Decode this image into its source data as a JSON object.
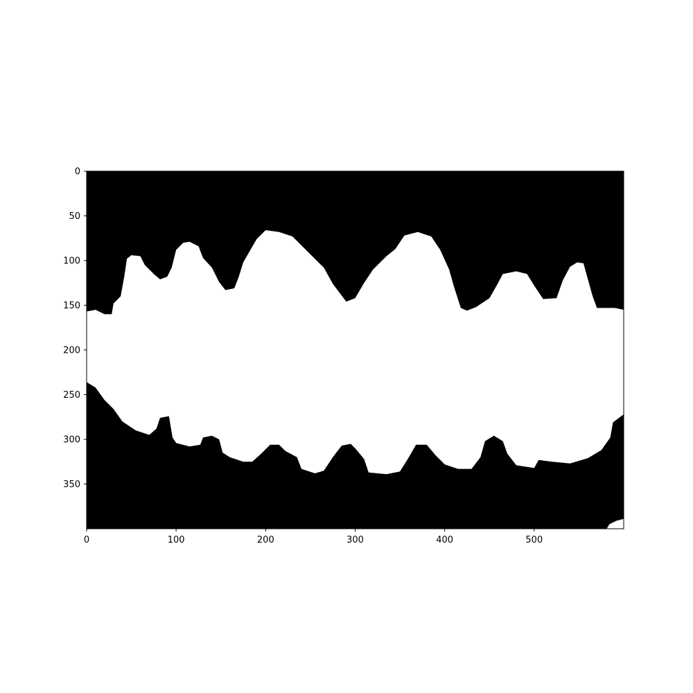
{
  "chart_data": {
    "type": "heatmap",
    "title": "",
    "xlabel": "",
    "ylabel": "",
    "image_size": {
      "width": 600,
      "height": 400
    },
    "xlim": [
      0,
      600
    ],
    "ylim": [
      400,
      0
    ],
    "x_ticks": [
      0,
      100,
      200,
      300,
      400,
      500
    ],
    "y_ticks": [
      0,
      50,
      100,
      150,
      200,
      250,
      300,
      350
    ],
    "x_tick_labels": [
      "0",
      "100",
      "200",
      "300",
      "400",
      "500"
    ],
    "y_tick_labels": [
      "0",
      "50",
      "100",
      "150",
      "200",
      "250",
      "300",
      "350"
    ],
    "colormap": {
      "0": "#000000",
      "1": "#ffffff"
    },
    "mask_description": "binary mask, white band across the middle",
    "mask_upper_boundary": [
      [
        0,
        157
      ],
      [
        10,
        155
      ],
      [
        20,
        160
      ],
      [
        28,
        160
      ],
      [
        30,
        148
      ],
      [
        38,
        140
      ],
      [
        42,
        118
      ],
      [
        45,
        98
      ],
      [
        50,
        94
      ],
      [
        60,
        95
      ],
      [
        65,
        105
      ],
      [
        75,
        115
      ],
      [
        82,
        121
      ],
      [
        90,
        118
      ],
      [
        95,
        108
      ],
      [
        100,
        88
      ],
      [
        108,
        80
      ],
      [
        115,
        79
      ],
      [
        125,
        84
      ],
      [
        130,
        97
      ],
      [
        140,
        108
      ],
      [
        148,
        124
      ],
      [
        155,
        133
      ],
      [
        165,
        131
      ],
      [
        170,
        118
      ],
      [
        175,
        102
      ],
      [
        183,
        88
      ],
      [
        190,
        76
      ],
      [
        200,
        66
      ],
      [
        215,
        68
      ],
      [
        230,
        73
      ],
      [
        240,
        83
      ],
      [
        250,
        93
      ],
      [
        265,
        108
      ],
      [
        275,
        126
      ],
      [
        290,
        146
      ],
      [
        300,
        142
      ],
      [
        310,
        125
      ],
      [
        320,
        110
      ],
      [
        335,
        95
      ],
      [
        345,
        87
      ],
      [
        355,
        72
      ],
      [
        370,
        68
      ],
      [
        385,
        73
      ],
      [
        395,
        88
      ],
      [
        405,
        110
      ],
      [
        410,
        128
      ],
      [
        418,
        153
      ],
      [
        425,
        156
      ],
      [
        435,
        152
      ],
      [
        450,
        142
      ],
      [
        458,
        128
      ],
      [
        465,
        115
      ],
      [
        480,
        112
      ],
      [
        492,
        115
      ],
      [
        500,
        128
      ],
      [
        510,
        143
      ],
      [
        525,
        142
      ],
      [
        532,
        122
      ],
      [
        540,
        107
      ],
      [
        548,
        102
      ],
      [
        555,
        103
      ],
      [
        565,
        139
      ],
      [
        570,
        153
      ],
      [
        590,
        153
      ],
      [
        600,
        155
      ]
    ],
    "mask_lower_boundary": [
      [
        0,
        236
      ],
      [
        10,
        242
      ],
      [
        20,
        256
      ],
      [
        30,
        266
      ],
      [
        40,
        280
      ],
      [
        55,
        290
      ],
      [
        70,
        295
      ],
      [
        78,
        288
      ],
      [
        82,
        276
      ],
      [
        92,
        274
      ],
      [
        96,
        298
      ],
      [
        100,
        304
      ],
      [
        115,
        308
      ],
      [
        127,
        306
      ],
      [
        130,
        298
      ],
      [
        140,
        296
      ],
      [
        148,
        300
      ],
      [
        152,
        315
      ],
      [
        160,
        320
      ],
      [
        175,
        325
      ],
      [
        185,
        325
      ],
      [
        195,
        316
      ],
      [
        205,
        306
      ],
      [
        215,
        306
      ],
      [
        222,
        313
      ],
      [
        235,
        320
      ],
      [
        240,
        333
      ],
      [
        255,
        338
      ],
      [
        265,
        335
      ],
      [
        275,
        320
      ],
      [
        285,
        307
      ],
      [
        295,
        305
      ],
      [
        300,
        310
      ],
      [
        310,
        322
      ],
      [
        315,
        337
      ],
      [
        335,
        339
      ],
      [
        350,
        336
      ],
      [
        360,
        320
      ],
      [
        368,
        306
      ],
      [
        380,
        306
      ],
      [
        390,
        318
      ],
      [
        400,
        328
      ],
      [
        415,
        333
      ],
      [
        430,
        333
      ],
      [
        440,
        320
      ],
      [
        445,
        302
      ],
      [
        455,
        296
      ],
      [
        465,
        302
      ],
      [
        470,
        316
      ],
      [
        480,
        329
      ],
      [
        500,
        332
      ],
      [
        505,
        323
      ],
      [
        520,
        325
      ],
      [
        540,
        327
      ],
      [
        560,
        321
      ],
      [
        575,
        312
      ],
      [
        585,
        298
      ],
      [
        588,
        281
      ],
      [
        600,
        272
      ]
    ],
    "mask_corner_blob": [
      [
        581,
        400
      ],
      [
        584,
        395
      ],
      [
        592,
        391
      ],
      [
        600,
        389
      ],
      [
        600,
        400
      ]
    ]
  }
}
